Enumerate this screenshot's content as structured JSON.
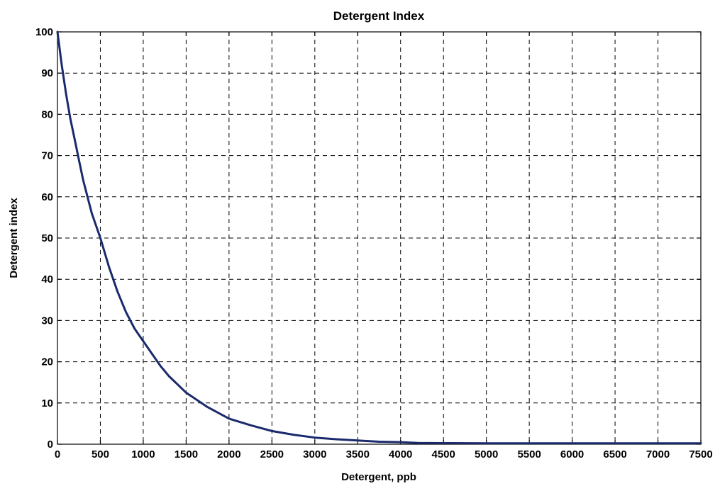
{
  "chart_data": {
    "type": "line",
    "title": "Detergent Index",
    "xlabel": "Detergent, ppb",
    "ylabel": "Detergent index",
    "xlim": [
      0,
      7500
    ],
    "ylim": [
      0,
      100
    ],
    "x_ticks": [
      0,
      500,
      1000,
      1500,
      2000,
      2500,
      3000,
      3500,
      4000,
      4500,
      5000,
      5500,
      6000,
      6500,
      7000,
      7500
    ],
    "y_ticks": [
      0,
      10,
      20,
      30,
      40,
      50,
      60,
      70,
      80,
      90,
      100
    ],
    "grid": true,
    "series": [
      {
        "color": "#1a2a6c",
        "x": [
          0,
          50,
          100,
          150,
          200,
          250,
          300,
          400,
          500,
          600,
          700,
          800,
          900,
          1000,
          1100,
          1200,
          1300,
          1400,
          1500,
          1750,
          2000,
          2250,
          2500,
          2750,
          3000,
          3250,
          3500,
          3750,
          4000,
          4200,
          4500,
          5000,
          5500,
          6000,
          6500,
          7000,
          7500
        ],
        "y": [
          100,
          92,
          85,
          79,
          74,
          69,
          64,
          56,
          50,
          43,
          37,
          32,
          28,
          25,
          22,
          19,
          16.5,
          14.5,
          12.5,
          9,
          6.2,
          4.6,
          3.2,
          2.3,
          1.6,
          1.2,
          0.9,
          0.6,
          0.5,
          0.3,
          0.25,
          0.2,
          0.2,
          0.2,
          0.2,
          0.2,
          0.2
        ]
      }
    ]
  }
}
